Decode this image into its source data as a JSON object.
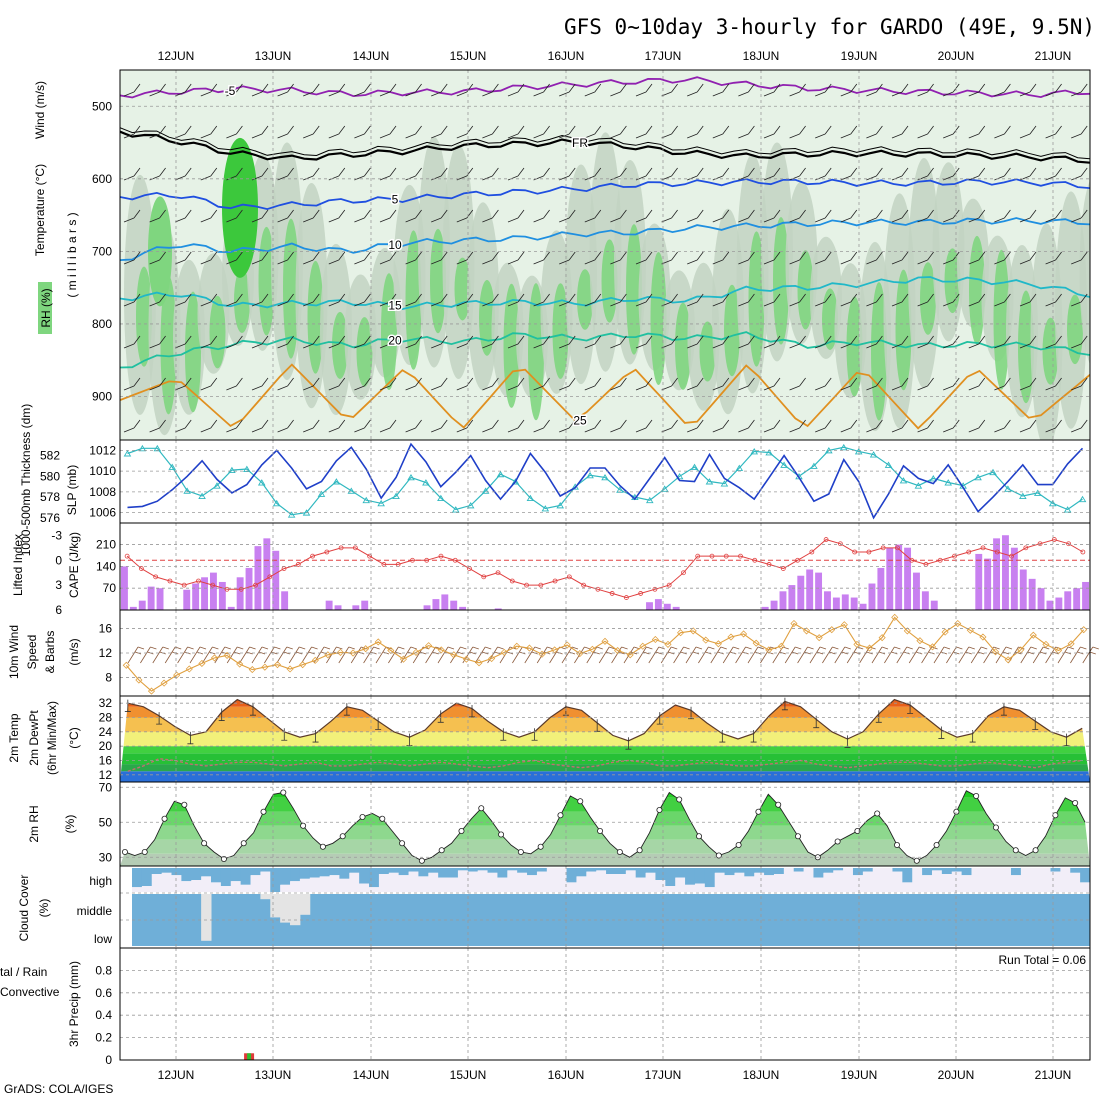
{
  "title": "GFS 0~10day 3-hourly for GARDO (49E, 9.5N)",
  "credit": "GrADS: COLA/IGES",
  "colors": {
    "rh_light": "#e6f2e6",
    "rh_mid": "#c2d4c2",
    "rh_green": "#7fd67f",
    "rh_dark": "#3cc83c",
    "wind_speed": "#e0a040",
    "slp": "#1f3fc8",
    "thickness": "#30b8c0",
    "cape": "#c880f0",
    "lifted": "#e04040",
    "rh2m": "#22cc22",
    "cloud": "#6fafd8",
    "grid": "#9a9a9a"
  },
  "chart_data": [
    {
      "type": "area",
      "panel": "upper_air",
      "ylabel_segments": [
        "RH (%)",
        "Temperature (°C)",
        "Wind (m/s)"
      ],
      "yunit": "( m i l l i b a r s )",
      "x_categories": [
        "12JUN",
        "13JUN",
        "14JUN",
        "15JUN",
        "16JUN",
        "17JUN",
        "18JUN",
        "19JUN",
        "20JUN",
        "21JUN"
      ],
      "ylim": [
        960,
        450
      ],
      "yticks": [
        500,
        600,
        700,
        800,
        900
      ],
      "isotherms": [
        {
          "label": "-5",
          "levels": [
            485,
            480,
            476,
            478,
            483,
            481,
            480,
            474,
            470,
            466,
            463,
            470,
            475,
            478,
            480,
            482,
            484,
            480
          ]
        },
        {
          "label": "FR",
          "levels": [
            535,
            548,
            565,
            572,
            567,
            562,
            555,
            552,
            549,
            556,
            565,
            569,
            566,
            565,
            566,
            568,
            570,
            575
          ]
        },
        {
          "label": "5",
          "levels": [
            625,
            622,
            640,
            636,
            630,
            628,
            622,
            618,
            614,
            608,
            606,
            604,
            604,
            606,
            606,
            604,
            605,
            610
          ]
        },
        {
          "label": "10",
          "levels": [
            712,
            690,
            700,
            693,
            700,
            688,
            685,
            682,
            676,
            674,
            668,
            665,
            662,
            660,
            660,
            658,
            658,
            660
          ]
        },
        {
          "label": "15",
          "levels": [
            765,
            758,
            775,
            772,
            770,
            776,
            772,
            770,
            772,
            765,
            768,
            752,
            750,
            745,
            738,
            740,
            745,
            760
          ]
        },
        {
          "label": "20",
          "levels": [
            860,
            840,
            828,
            822,
            830,
            820,
            825,
            815,
            820,
            815,
            820,
            815,
            830,
            825,
            830,
            828,
            830,
            840
          ]
        },
        {
          "label": "25",
          "levels": [
            905,
            875,
            945,
            855,
            935,
            860,
            945,
            855,
            935,
            860,
            945,
            855,
            945,
            860,
            945,
            860,
            935,
            870
          ]
        }
      ]
    },
    {
      "type": "line",
      "panel": "slp_thickness",
      "ylabel_left": "1000-500mb Thickness (dm)",
      "ylabel_right": "SLP (mb)",
      "yticks_left": [
        576,
        578,
        580,
        582
      ],
      "yticks_right": [
        1006,
        1008,
        1010,
        1012
      ],
      "ylim": [
        1005,
        1013
      ],
      "series": [
        {
          "name": "SLP",
          "values": [
            1006.5,
            1006.6,
            1007.1,
            1008.2,
            1009.5,
            1011.0,
            1009.2,
            1007.9,
            1008.7,
            1010.6,
            1012.0,
            1010.3,
            1008.3,
            1009.0,
            1011.0,
            1012.3,
            1010.2,
            1007.4,
            1009.4,
            1012.6,
            1010.9,
            1008.5,
            1009.9,
            1011.5,
            1009.1,
            1007.3,
            1009.0,
            1011.7,
            1009.9,
            1007.6,
            1008.4,
            1010.3,
            1010.3,
            1008.6,
            1007.3,
            1009.3,
            1011.3,
            1009.1,
            1009.0,
            1011.6,
            1009.3,
            1008.4,
            1007.3,
            1009.4,
            1011.5,
            1009.4,
            1007.1,
            1007.8,
            1011.1,
            1009.0,
            1005.5,
            1007.8,
            1010.5,
            1009.3,
            1008.8,
            1010.6,
            1008.4,
            1006.1,
            1007.5,
            1009.0,
            1010.6,
            1008.7,
            1008.7,
            1010.7,
            1012.2
          ]
        },
        {
          "name": "Thickness",
          "values": [
            1011.7,
            1012.2,
            1012.2,
            1010.4,
            1008.1,
            1007.6,
            1008.6,
            1010.1,
            1010.2,
            1008.9,
            1006.9,
            1005.8,
            1006.0,
            1007.8,
            1009.0,
            1008.1,
            1007.2,
            1006.9,
            1007.6,
            1009.4,
            1008.9,
            1007.4,
            1006.3,
            1006.7,
            1008.1,
            1009.7,
            1009.0,
            1007.4,
            1006.4,
            1006.7,
            1008.5,
            1009.6,
            1009.4,
            1008.2,
            1007.5,
            1007.2,
            1008.3,
            1009.5,
            1010.4,
            1009.0,
            1008.8,
            1010.3,
            1011.9,
            1011.8,
            1010.6,
            1009.5,
            1010.5,
            1012.0,
            1012.3,
            1011.9,
            1011.6,
            1010.6,
            1009.1,
            1008.6,
            1009.3,
            1008.9,
            1008.6,
            1009.4,
            1009.9,
            1008.3,
            1007.6,
            1007.9,
            1006.9,
            1006.3,
            1007.3
          ]
        }
      ]
    },
    {
      "type": "bar",
      "panel": "cape_li",
      "ylabel_left": "Lifted Index",
      "ylabel_right": "CAPE (J/kg)",
      "yticks_left": [
        -3,
        0,
        3,
        6
      ],
      "yticks_right": [
        70,
        140,
        210
      ],
      "ylim": [
        0,
        260
      ],
      "cape": [
        140,
        10,
        30,
        75,
        70,
        0,
        0,
        65,
        85,
        105,
        120,
        90,
        10,
        105,
        135,
        205,
        230,
        190,
        60,
        0,
        0,
        0,
        0,
        30,
        15,
        0,
        15,
        30,
        0,
        0,
        0,
        0,
        0,
        0,
        15,
        35,
        50,
        30,
        10,
        0,
        0,
        0,
        5,
        0,
        0,
        0,
        0,
        0,
        0,
        0,
        0,
        0,
        0,
        0,
        0,
        0,
        0,
        0,
        0,
        25,
        35,
        20,
        10,
        0,
        0,
        0,
        0,
        0,
        0,
        0,
        0,
        0,
        10,
        30,
        60,
        80,
        110,
        130,
        120,
        60,
        40,
        50,
        40,
        20,
        85,
        135,
        200,
        210,
        200,
        120,
        60,
        30,
        0,
        0,
        0,
        0,
        180,
        165,
        230,
        240,
        200,
        130,
        100,
        70,
        30,
        40,
        60,
        70,
        90
      ],
      "lifted_index": [
        -0.5,
        1.0,
        2.0,
        2.5,
        3.0,
        2.5,
        3.0,
        3.5,
        3.5,
        3.0,
        2.0,
        1.0,
        0.5,
        -0.5,
        -1.0,
        -1.5,
        -1.5,
        -0.5,
        0.5,
        0.5,
        0.0,
        0.0,
        -0.5,
        0.0,
        1.0,
        2.0,
        1.5,
        2.5,
        3.0,
        3.0,
        2.5,
        2.0,
        3.0,
        3.5,
        4.0,
        4.5,
        4.0,
        3.5,
        3.0,
        1.5,
        -0.5,
        -0.5,
        -0.5,
        -0.5,
        0.0,
        0.5,
        1.0,
        0.0,
        -1.0,
        -2.5,
        -2.0,
        -1.0,
        -1.0,
        -1.5,
        -1.5,
        0.0,
        0.5,
        0.0,
        -0.5,
        -1.0,
        -1.5,
        -1.0,
        -0.5,
        -1.5,
        -2.0,
        -2.5,
        -2.0,
        -1.0
      ]
    },
    {
      "type": "line",
      "panel": "wind10m",
      "ylabel": "10m Wind Speed & Barbs (m/s)",
      "yticks": [
        8,
        12,
        16
      ],
      "ylim": [
        5,
        19
      ],
      "series": [
        {
          "name": "10m Wind Speed",
          "values": [
            10.0,
            7.6,
            5.8,
            7.1,
            8.4,
            9.4,
            10.3,
            11.2,
            11.6,
            10.2,
            9.3,
            9.7,
            10.1,
            9.4,
            10.1,
            10.8,
            11.7,
            12.1,
            12.0,
            12.7,
            13.8,
            12.4,
            11.0,
            12.1,
            13.2,
            12.5,
            11.7,
            11.0,
            10.4,
            11.1,
            12.1,
            13.1,
            12.8,
            11.8,
            12.5,
            13.3,
            11.9,
            12.6,
            13.9,
            12.4,
            11.7,
            13.1,
            14.2,
            13.4,
            15.3,
            15.6,
            14.1,
            13.5,
            14.6,
            15.1,
            13.6,
            12.5,
            13.1,
            16.8,
            15.6,
            14.5,
            15.8,
            16.6,
            13.4,
            12.8,
            14.5,
            17.8,
            15.6,
            14.0,
            13.0,
            15.4,
            16.8,
            15.7,
            14.6,
            12.2,
            10.9,
            12.5,
            14.9,
            13.4,
            12.4,
            13.5,
            15.8
          ]
        }
      ]
    },
    {
      "type": "line",
      "panel": "temp2m",
      "ylabel": "2m Temp 2m DewPt (6hr Min/Max) (°C)",
      "yticks": [
        12,
        16,
        20,
        24,
        28,
        32
      ],
      "ylim": [
        10,
        34
      ],
      "series": [
        {
          "name": "2m Temp",
          "values": [
            32.0,
            31.0,
            28.5,
            25.5,
            23.0,
            24.0,
            29.5,
            33.0,
            31.0,
            27.5,
            24.0,
            22.5,
            23.5,
            27.0,
            31.0,
            30.0,
            27.0,
            24.0,
            22.5,
            24.5,
            29.0,
            32.0,
            30.5,
            27.0,
            24.0,
            22.5,
            24.0,
            28.0,
            31.0,
            30.0,
            26.5,
            23.0,
            21.5,
            23.5,
            28.5,
            31.5,
            30.0,
            26.5,
            23.5,
            22.0,
            23.5,
            28.5,
            32.5,
            31.0,
            27.5,
            24.0,
            22.0,
            24.0,
            29.0,
            33.0,
            31.5,
            28.0,
            24.5,
            22.5,
            23.5,
            28.5,
            31.0,
            30.0,
            27.0,
            24.0,
            22.5,
            25.0
          ]
        },
        {
          "name": "2m DewPt",
          "values": [
            13.0,
            14.5,
            16.5,
            16.0,
            15.0,
            14.5,
            15.0,
            15.5,
            15.5,
            15.0,
            14.5,
            15.0,
            15.5,
            14.5,
            14.5,
            15.0,
            15.5,
            15.0,
            14.5,
            15.0,
            15.5,
            15.0,
            14.5,
            14.0,
            14.5,
            15.5,
            16.0,
            15.0,
            14.5,
            14.0,
            14.5,
            15.5,
            16.0,
            15.5,
            14.5,
            14.5,
            15.0,
            15.5,
            15.0,
            14.5,
            14.5,
            15.0,
            15.5,
            16.0,
            15.0,
            14.5,
            14.0,
            14.5,
            15.0,
            15.5,
            15.5,
            15.0,
            14.5,
            14.5,
            15.0,
            15.5,
            15.0,
            14.5,
            14.0,
            15.0,
            15.5,
            16.0
          ]
        }
      ]
    },
    {
      "type": "area",
      "panel": "rh2m",
      "ylabel": "2m RH (%)",
      "yticks": [
        30,
        50,
        70
      ],
      "ylim": [
        25,
        73
      ],
      "series": [
        {
          "name": "2m RH",
          "values": [
            33,
            31,
            33,
            40,
            52,
            62,
            60,
            48,
            38,
            33,
            29,
            31,
            38,
            44,
            56,
            66,
            67,
            58,
            48,
            41,
            36,
            38,
            42,
            48,
            53,
            55,
            52,
            45,
            38,
            31,
            28,
            30,
            34,
            38,
            45,
            52,
            58,
            51,
            43,
            37,
            33,
            32,
            36,
            43,
            54,
            65,
            62,
            53,
            45,
            38,
            33,
            30,
            34,
            44,
            57,
            67,
            63,
            52,
            42,
            36,
            31,
            33,
            37,
            45,
            56,
            66,
            60,
            51,
            42,
            33,
            30,
            34,
            39,
            42,
            45,
            51,
            55,
            48,
            37,
            31,
            28,
            31,
            37,
            45,
            56,
            68,
            65,
            55,
            47,
            39,
            34,
            31,
            34,
            42,
            54,
            64,
            61,
            50
          ]
        }
      ]
    },
    {
      "type": "area",
      "panel": "cloud_cover",
      "ylabel": "Cloud Cover (%)",
      "ytick_labels": [
        "high",
        "middle",
        "low"
      ],
      "high_cover": [
        0.8,
        0.75,
        0.25,
        0.2,
        0.3,
        0.55,
        0.5,
        0.35,
        0.6,
        0.75,
        0.55,
        0.7,
        0.3,
        0.15,
        1.0,
        0.7,
        0.55,
        0.45,
        0.4,
        0.35,
        0.3,
        0.45,
        0.2,
        0.65,
        0.8,
        0.25,
        0.2,
        0.3,
        0.15,
        0.35,
        0.2,
        0.4,
        0.4,
        0.1,
        0.15,
        0.1,
        0.2,
        0.4,
        0.1,
        0.2,
        0.3,
        0.15,
        0.0,
        0.0,
        0.6,
        0.35,
        0.15,
        0.1,
        0.25,
        0.25,
        0.1,
        0.4,
        0.2,
        0.5,
        0.75,
        0.4,
        0.7,
        0.65,
        0.8,
        0.2,
        0.3,
        0.2,
        0.35,
        0.2,
        0.3,
        0.25,
        0.0,
        0.15,
        0.0,
        0.4,
        0.2,
        0.1,
        0.0,
        0.3,
        0.15,
        0.0,
        0.0,
        0.15,
        0.6,
        0.0,
        0.3,
        0.1,
        0.25,
        0.15,
        0.3,
        0.0,
        0.0,
        0.0,
        0.0,
        0.3,
        0.0,
        0.0,
        0.0,
        0.15,
        0.0,
        0.2,
        0.6
      ],
      "mid_cover_gap": [
        0,
        0,
        0,
        0,
        0,
        0,
        0,
        0.9,
        0,
        0,
        0,
        0,
        0,
        0.1,
        0.45,
        0.55,
        0.6,
        0.4,
        0,
        0,
        0,
        0,
        0,
        0,
        0,
        0,
        0,
        0,
        0,
        0,
        0,
        0,
        0,
        0,
        0,
        0,
        0,
        0,
        0,
        0,
        0,
        0,
        0,
        0,
        0,
        0,
        0,
        0,
        0,
        0,
        0,
        0,
        0,
        0,
        0,
        0,
        0,
        0,
        0,
        0,
        0,
        0,
        0,
        0,
        0,
        0,
        0,
        0,
        0,
        0,
        0,
        0,
        0,
        0,
        0,
        0,
        0,
        0,
        0,
        0,
        0,
        0,
        0,
        0,
        0,
        0,
        0,
        0,
        0,
        0,
        0,
        0,
        0,
        0,
        0,
        0,
        0
      ]
    },
    {
      "type": "bar",
      "panel": "precip",
      "ylabel": "3hr Precip (mm)",
      "side_label_top": "tal / Rain",
      "side_label_bottom": "Convective",
      "annotation": "Run Total = 0.06",
      "yticks": [
        0,
        0.2,
        0.4,
        0.6,
        0.8
      ],
      "ylim": [
        0,
        1.0
      ],
      "events": [
        {
          "x": "12JUN 18Z",
          "value": 0.06
        }
      ]
    }
  ]
}
